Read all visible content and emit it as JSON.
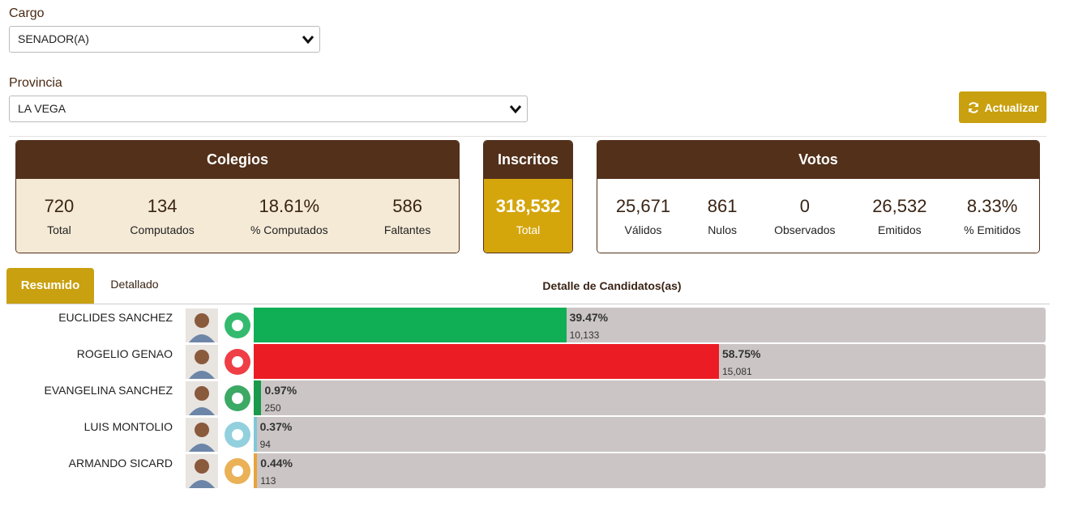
{
  "filters": {
    "cargo": {
      "label": "Cargo",
      "value": "SENADOR(A)"
    },
    "provincia": {
      "label": "Provincia",
      "value": "LA VEGA"
    },
    "refresh_button": "Actualizar"
  },
  "colegios": {
    "title": "Colegios",
    "stats": [
      {
        "value": "720",
        "label": "Total"
      },
      {
        "value": "134",
        "label": "Computados"
      },
      {
        "value": "18.61%",
        "label": "% Computados"
      },
      {
        "value": "586",
        "label": "Faltantes"
      }
    ]
  },
  "inscritos": {
    "title": "Inscritos",
    "stats": [
      {
        "value": "318,532",
        "label": "Total"
      }
    ]
  },
  "votos": {
    "title": "Votos",
    "stats": [
      {
        "value": "25,671",
        "label": "Válidos"
      },
      {
        "value": "861",
        "label": "Nulos"
      },
      {
        "value": "0",
        "label": "Observados"
      },
      {
        "value": "26,532",
        "label": "Emitidos"
      },
      {
        "value": "8.33%",
        "label": "% Emitidos"
      }
    ]
  },
  "tabs": [
    "Resumido",
    "Detallado"
  ],
  "detail_title": "Detalle de Candidatos(as)",
  "candidates": [
    {
      "name": "EUCLIDES SANCHEZ",
      "percent": 39.47,
      "percent_label": "39.47%",
      "votes": "10,133",
      "color": "#10ae55"
    },
    {
      "name": "ROGELIO GENAO",
      "percent": 58.75,
      "percent_label": "58.75%",
      "votes": "15,081",
      "color": "#ec1c24"
    },
    {
      "name": "EVANGELINA SANCHEZ",
      "percent": 0.97,
      "percent_label": "0.97%",
      "votes": "250",
      "color": "#1a9a4a"
    },
    {
      "name": "LUIS MONTOLIO",
      "percent": 0.37,
      "percent_label": "0.37%",
      "votes": "94",
      "color": "#7fc8d8"
    },
    {
      "name": "ARMANDO SICARD",
      "percent": 0.44,
      "percent_label": "0.44%",
      "votes": "113",
      "color": "#e8a33a"
    }
  ]
}
